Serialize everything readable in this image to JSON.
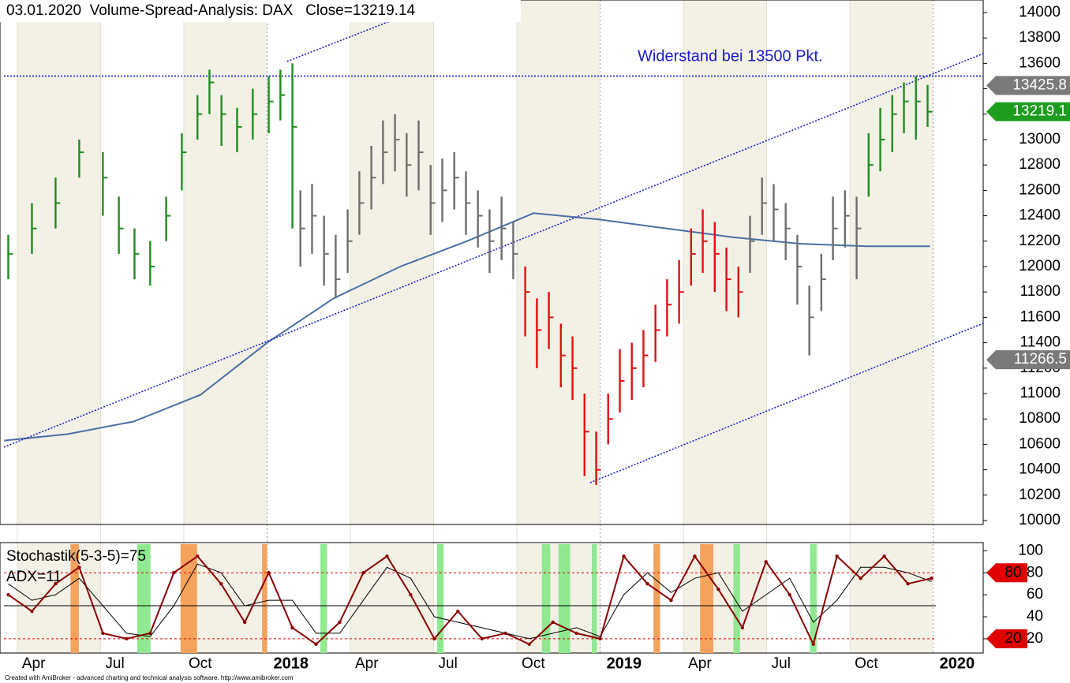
{
  "chart_data": [
    {
      "type": "ohlc",
      "title": "03.01.2020  Volume-Spread-Analysis: DAX   Close=13219.14",
      "annotation": "Widerstand bei 13500 Pkt.",
      "xlim": [
        2017.21,
        2020.15
      ],
      "ylim": [
        9969,
        14099
      ],
      "xticks": [
        {
          "value": 2017.25,
          "label": "Apr"
        },
        {
          "value": 2017.5,
          "label": "Jul"
        },
        {
          "value": 2017.75,
          "label": "Oct"
        },
        2018,
        {
          "value": 2018.25,
          "label": "Apr"
        },
        {
          "value": 2018.5,
          "label": "Jul"
        },
        {
          "value": 2018.75,
          "label": "Oct"
        },
        2019,
        {
          "value": 2019.25,
          "label": "Apr"
        },
        {
          "value": 2019.5,
          "label": "Jul"
        },
        {
          "value": 2019.75,
          "label": "Oct"
        },
        2020
      ],
      "yticks": [
        10000,
        10200,
        10400,
        10600,
        10800,
        11000,
        11200,
        11400,
        11600,
        11800,
        12000,
        12200,
        12400,
        12600,
        12800,
        13000,
        13200,
        13400,
        13600,
        13800,
        14000
      ],
      "series": [
        {
          "color": "#1e8c1e",
          "x": [
            2017.223,
            2017.294,
            2017.365,
            2017.436,
            2017.507,
            2017.555,
            2017.602,
            2017.649,
            2017.697,
            2017.744,
            2017.791,
            2017.827,
            2017.863,
            2017.91,
            2017.957,
            2018.005,
            2018.04,
            2018.076
          ],
          "close": [
            12100,
            12300,
            12500,
            12900,
            12700,
            12300,
            12100,
            12000,
            12400,
            12900,
            13200,
            13450,
            13200,
            13100,
            13200,
            13300,
            13350,
            13100
          ],
          "high": [
            12250,
            12500,
            12700,
            13000,
            12900,
            12550,
            12300,
            12200,
            12550,
            13050,
            13350,
            13550,
            13350,
            13250,
            13400,
            13500,
            13550,
            13600
          ],
          "low": [
            11900,
            12100,
            12300,
            12700,
            12400,
            12100,
            11900,
            11850,
            12200,
            12600,
            13000,
            13200,
            12950,
            12900,
            13000,
            13050,
            13150,
            12300
          ]
        },
        {
          "color": "#6e6e6e",
          "x": [
            2018.1,
            2018.135,
            2018.171,
            2018.206,
            2018.242,
            2018.277,
            2018.313,
            2018.348,
            2018.384,
            2018.419,
            2018.455,
            2018.491,
            2018.526,
            2018.562,
            2018.597,
            2018.633,
            2018.668,
            2018.704,
            2018.739
          ],
          "close": [
            12300,
            12400,
            12100,
            11900,
            12200,
            12500,
            12700,
            12900,
            13000,
            12800,
            12900,
            12500,
            12600,
            12700,
            12500,
            12400,
            12200,
            12300,
            12100
          ],
          "high": [
            12600,
            12650,
            12400,
            12250,
            12450,
            12750,
            12950,
            13150,
            13200,
            13050,
            13150,
            12800,
            12850,
            12900,
            12750,
            12600,
            12450,
            12550,
            12350
          ],
          "low": [
            12000,
            12100,
            11850,
            11750,
            11950,
            12250,
            12450,
            12650,
            12750,
            12550,
            12600,
            12250,
            12350,
            12450,
            12250,
            12150,
            11950,
            12050,
            11900
          ]
        },
        {
          "color": "#e01010",
          "x": [
            2018.775,
            2018.81,
            2018.846,
            2018.882,
            2018.917,
            2018.953,
            2018.988,
            2019.024,
            2019.059,
            2019.095,
            2019.13,
            2019.166,
            2019.201,
            2019.237,
            2019.273,
            2019.308,
            2019.344,
            2019.379,
            2019.415
          ],
          "close": [
            11800,
            11500,
            11600,
            11300,
            11200,
            10700,
            10400,
            10800,
            11100,
            11200,
            11300,
            11500,
            11700,
            11800,
            12100,
            12200,
            12100,
            11900,
            11800
          ],
          "high": [
            12000,
            11750,
            11800,
            11550,
            11450,
            11000,
            10700,
            11000,
            11350,
            11400,
            11500,
            11700,
            11900,
            12050,
            12300,
            12450,
            12350,
            12150,
            12000
          ],
          "low": [
            11450,
            11200,
            11350,
            11050,
            10950,
            10350,
            10280,
            10600,
            10850,
            10950,
            11050,
            11250,
            11450,
            11550,
            11850,
            11950,
            11800,
            11650,
            11600
          ]
        },
        {
          "color": "#6e6e6e",
          "x": [
            2019.45,
            2019.486,
            2019.521,
            2019.557,
            2019.592,
            2019.628,
            2019.664,
            2019.699,
            2019.735,
            2019.77
          ],
          "close": [
            12200,
            12500,
            12450,
            12300,
            12000,
            11600,
            11900,
            12300,
            12400,
            12300
          ],
          "high": [
            12400,
            12700,
            12650,
            12500,
            12250,
            11850,
            12100,
            12550,
            12600,
            12550
          ],
          "low": [
            11950,
            12250,
            12200,
            12050,
            11700,
            11300,
            11650,
            12050,
            12150,
            11900
          ]
        },
        {
          "color": "#1e8c1e",
          "x": [
            2019.806,
            2019.841,
            2019.877,
            2019.912,
            2019.948,
            2019.983
          ],
          "close": [
            12800,
            13000,
            13200,
            13300,
            13300,
            13219.14
          ],
          "high": [
            13050,
            13250,
            13350,
            13450,
            13500,
            13430
          ],
          "low": [
            12550,
            12750,
            12900,
            13050,
            13000,
            13100
          ]
        }
      ],
      "moving_average": {
        "color": "#4a6fa5",
        "x": [
          2017.21,
          2017.4,
          2017.6,
          2017.8,
          2018.0,
          2018.2,
          2018.4,
          2018.6,
          2018.8,
          2019.0,
          2019.2,
          2019.4,
          2019.6,
          2019.8,
          2019.99
        ],
        "values": [
          10630,
          10680,
          10780,
          10990,
          11400,
          11750,
          12000,
          12200,
          12420,
          12370,
          12300,
          12230,
          12180,
          12160,
          12160
        ]
      },
      "trendlines": [
        {
          "x": [
            2017.21,
            2020.15
          ],
          "values": [
            10578,
            13677
          ]
        },
        {
          "x": [
            2018.06,
            2018.38
          ],
          "values": [
            13615,
            13944
          ]
        },
        {
          "x": [
            2018.97,
            2020.15
          ],
          "values": [
            10298,
            11553
          ]
        }
      ],
      "resistance": 13500,
      "price_tags": [
        {
          "value": 13425.8,
          "color": "#7a7a7a"
        },
        {
          "value": 13219.1,
          "color": "#1e9c1e"
        },
        {
          "value": 11266.5,
          "color": "#7a7a7a"
        }
      ]
    },
    {
      "type": "oscillator",
      "label": "Stochastik(5-3-5)=75",
      "label2": "ADX=11",
      "xlim": [
        2017.21,
        2020.15
      ],
      "ylim": [
        7,
        106
      ],
      "yticks": [
        20,
        40,
        60,
        80,
        100
      ],
      "levels": [
        80,
        20
      ],
      "midline": 50,
      "x": [
        2017.223,
        2017.294,
        2017.365,
        2017.436,
        2017.507,
        2017.578,
        2017.649,
        2017.72,
        2017.791,
        2017.862,
        2017.933,
        2018.005,
        2018.076,
        2018.147,
        2018.218,
        2018.289,
        2018.36,
        2018.431,
        2018.502,
        2018.573,
        2018.645,
        2018.716,
        2018.787,
        2018.858,
        2018.929,
        2019.0,
        2019.071,
        2019.142,
        2019.213,
        2019.284,
        2019.355,
        2019.427,
        2019.498,
        2019.569,
        2019.64,
        2019.711,
        2019.782,
        2019.853,
        2019.924,
        2019.995
      ],
      "series": [
        {
          "color": "#8b0000",
          "values": [
            60,
            45,
            70,
            85,
            25,
            20,
            25,
            80,
            95,
            70,
            35,
            80,
            30,
            15,
            35,
            80,
            95,
            60,
            20,
            45,
            20,
            25,
            15,
            35,
            25,
            20,
            95,
            70,
            55,
            95,
            65,
            30,
            90,
            60,
            15,
            95,
            75,
            95,
            70,
            75
          ]
        },
        {
          "color": "#000000",
          "values": [
            70,
            55,
            60,
            75,
            50,
            25,
            22,
            50,
            88,
            80,
            50,
            55,
            55,
            25,
            25,
            55,
            85,
            75,
            40,
            35,
            30,
            25,
            20,
            25,
            30,
            22,
            60,
            80,
            62,
            75,
            80,
            45,
            60,
            75,
            35,
            55,
            85,
            85,
            80,
            72
          ]
        }
      ],
      "highlights": [
        {
          "x": [
            2017.41,
            2017.435
          ],
          "color": "#f5a25d"
        },
        {
          "x": [
            2017.61,
            2017.65
          ],
          "color": "#90e890"
        },
        {
          "x": [
            2017.74,
            2017.79
          ],
          "color": "#f5a25d"
        },
        {
          "x": [
            2017.985,
            2018.0
          ],
          "color": "#f5a25d"
        },
        {
          "x": [
            2018.16,
            2018.18
          ],
          "color": "#90e890"
        },
        {
          "x": [
            2018.51,
            2018.53
          ],
          "color": "#90e890"
        },
        {
          "x": [
            2018.825,
            2018.85
          ],
          "color": "#90e890"
        },
        {
          "x": [
            2018.875,
            2018.91
          ],
          "color": "#90e890"
        },
        {
          "x": [
            2018.975,
            2018.99
          ],
          "color": "#90e890"
        },
        {
          "x": [
            2019.16,
            2019.18
          ],
          "color": "#f5a25d"
        },
        {
          "x": [
            2019.3,
            2019.34
          ],
          "color": "#f5a25d"
        },
        {
          "x": [
            2019.4,
            2019.42
          ],
          "color": "#90e890"
        },
        {
          "x": [
            2019.63,
            2019.65
          ],
          "color": "#90e890"
        }
      ]
    }
  ],
  "footer": "Created with AmiBroker - advanced charting and technical analysis software. http://www.amibroker.com"
}
